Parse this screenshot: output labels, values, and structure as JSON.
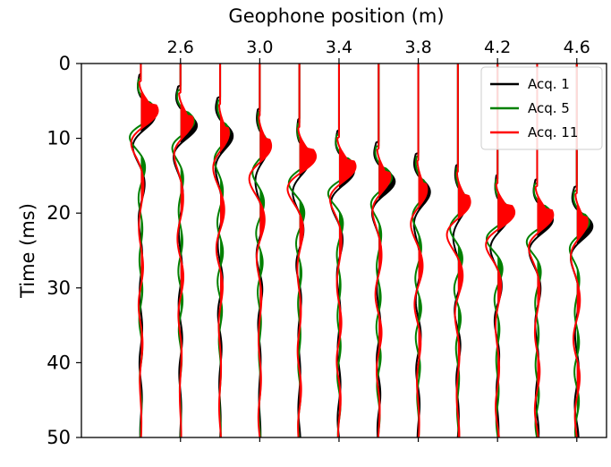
{
  "chart_data": {
    "type": "line",
    "title": "",
    "xlabel": "Geophone position (m)",
    "ylabel": "Time (ms)",
    "x_axis_position": "top",
    "y_inverted": true,
    "xlim": [
      2.1,
      4.75
    ],
    "ylim": [
      0,
      50
    ],
    "xticks": [
      "2.6",
      "3.0",
      "3.4",
      "3.8",
      "4.2",
      "4.6"
    ],
    "yticks": [
      "0",
      "10",
      "20",
      "30",
      "40",
      "50"
    ],
    "trace_positions": [
      2.4,
      2.6,
      2.8,
      3.0,
      3.2,
      3.4,
      3.6,
      3.8,
      4.0,
      4.2,
      4.4,
      4.6
    ],
    "trace_scale_m": 0.06,
    "grid": false,
    "legend_position": "top-right",
    "series": [
      {
        "name": "Acq. 1",
        "color": "#000000",
        "first_arrival_ms": [
          4.5,
          6,
          7.5,
          9,
          10.5,
          12,
          13.5,
          15,
          16.5,
          18,
          18.5,
          19.5
        ],
        "dominant_period_ms": 9.5,
        "amplitude": 0.9
      },
      {
        "name": "Acq. 5",
        "color": "#008000",
        "first_arrival_ms": [
          5,
          6.5,
          8,
          9.5,
          11,
          12.5,
          14,
          15.5,
          17,
          18.5,
          19,
          20
        ],
        "dominant_period_ms": 8.0,
        "amplitude": 0.85
      },
      {
        "name": "Acq. 11",
        "color": "#ff0000",
        "first_arrival_ms": [
          5.5,
          7,
          8.5,
          10,
          11.5,
          13,
          14.5,
          16,
          17.5,
          19,
          19.5,
          20.5
        ],
        "dominant_period_ms": 10.5,
        "amplitude": 1.0
      }
    ]
  }
}
